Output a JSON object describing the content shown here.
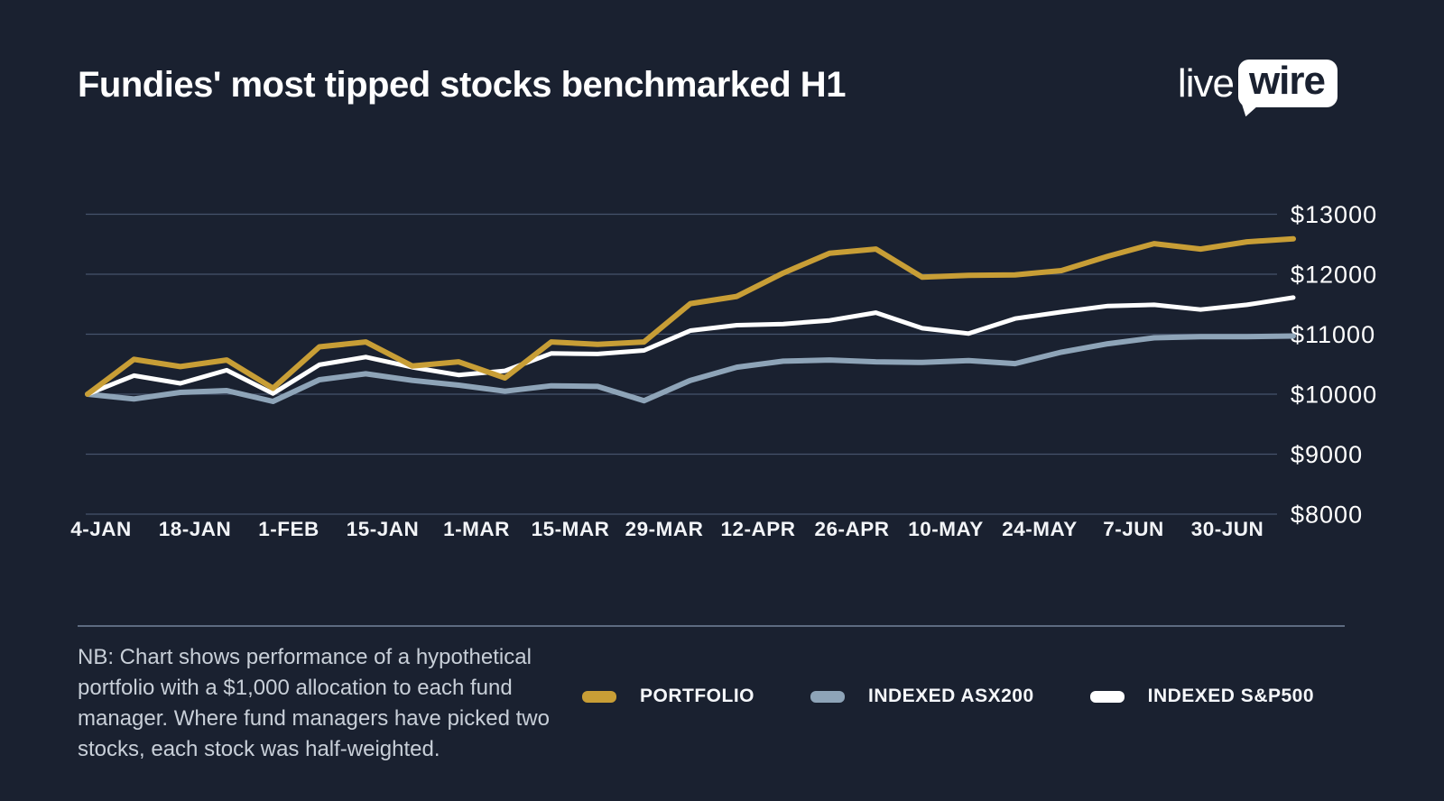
{
  "header": {
    "title": "Fundies' most tipped stocks benchmarked H1",
    "logo": {
      "live": "live",
      "wire": "wire"
    }
  },
  "chart_data": {
    "type": "line",
    "title": "Fundies' most tipped stocks benchmarked H1",
    "grid": true,
    "legend_position": "bottom",
    "y_prefix": "$",
    "y_ticks": [
      13000,
      12000,
      11000,
      10000,
      9000,
      8000
    ],
    "ylim": [
      8000,
      13000
    ],
    "x_labels": [
      "4-JAN",
      "18-JAN",
      "1-FEB",
      "15-JAN",
      "1-MAR",
      "15-MAR",
      "29-MAR",
      "12-APR",
      "26-APR",
      "10-MAY",
      "24-MAY",
      "7-JUN",
      "30-JUN"
    ],
    "series": [
      {
        "name": "PORTFOLIO",
        "color": "#C89E36",
        "values": [
          10000,
          10580,
          10460,
          10570,
          10100,
          10790,
          10870,
          10470,
          10540,
          10270,
          10870,
          10830,
          10870,
          11510,
          11630,
          12020,
          12350,
          12420,
          11950,
          11980,
          11990,
          12060,
          12300,
          12510,
          12420,
          12540,
          12590
        ]
      },
      {
        "name": "INDEXED ASX200",
        "color": "#8EA4B8",
        "values": [
          10000,
          9920,
          10030,
          10060,
          9880,
          10240,
          10340,
          10230,
          10150,
          10050,
          10140,
          10130,
          9890,
          10230,
          10450,
          10550,
          10570,
          10540,
          10530,
          10560,
          10510,
          10700,
          10840,
          10940,
          10960,
          10960,
          10970
        ]
      },
      {
        "name": "INDEXED S&P500",
        "color": "#FFFFFF",
        "values": [
          10000,
          10310,
          10180,
          10400,
          10010,
          10490,
          10620,
          10450,
          10320,
          10390,
          10680,
          10670,
          10730,
          11060,
          11150,
          11170,
          11230,
          11360,
          11100,
          11010,
          11260,
          11370,
          11470,
          11490,
          11410,
          11490,
          11610
        ]
      }
    ]
  },
  "footer": {
    "note_lines": [
      "NB: Chart shows performance of a hypothetical",
      "portfolio with a $1,000 allocation to each fund",
      "manager. Where fund managers have picked two",
      "stocks, each stock was half-weighted."
    ],
    "legend": [
      {
        "label": "PORTFOLIO"
      },
      {
        "label": "INDEXED ASX200"
      },
      {
        "label": "INDEXED S&P500"
      }
    ]
  }
}
